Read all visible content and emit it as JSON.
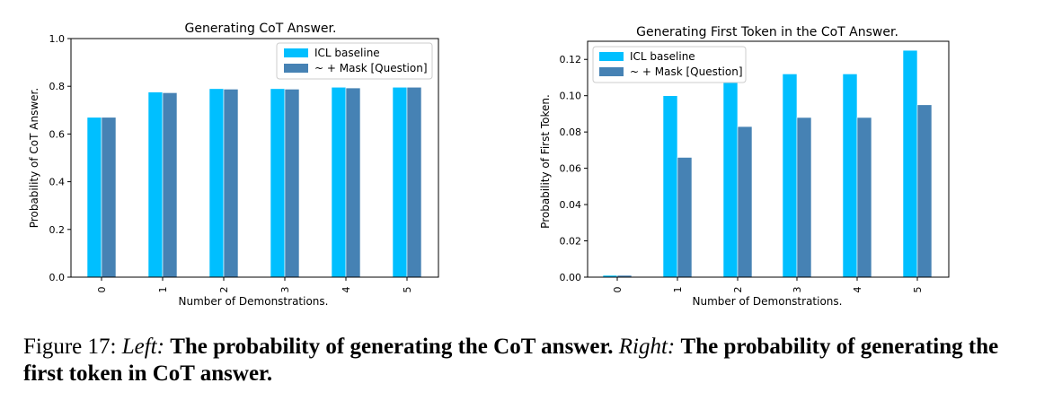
{
  "chart_data": [
    {
      "type": "bar",
      "title": "Generating CoT Answer.",
      "xlabel": "Number of Demonstrations.",
      "ylabel": "Probability of CoT Answer.",
      "categories": [
        "0",
        "1",
        "2",
        "3",
        "4",
        "5"
      ],
      "ylim": [
        0.0,
        1.0
      ],
      "yticks": [
        0.0,
        0.2,
        0.4,
        0.6,
        0.8,
        1.0
      ],
      "ytick_labels": [
        "0.0",
        "0.2",
        "0.4",
        "0.6",
        "0.8",
        "1.0"
      ],
      "legend_position": "top-right",
      "grid": false,
      "series": [
        {
          "name": "ICL baseline",
          "color": "#00BFFF",
          "values": [
            0.67,
            0.776,
            0.79,
            0.79,
            0.796,
            0.796
          ]
        },
        {
          "name": "~ + Mask [Question]",
          "color": "#4682B4",
          "values": [
            0.67,
            0.773,
            0.788,
            0.788,
            0.793,
            0.796
          ]
        }
      ]
    },
    {
      "type": "bar",
      "title": "Generating First Token in the CoT Answer.",
      "xlabel": "Number of Demonstrations.",
      "ylabel": "Probability of First Token.",
      "categories": [
        "0",
        "1",
        "2",
        "3",
        "4",
        "5"
      ],
      "ylim": [
        0.0,
        0.13
      ],
      "yticks": [
        0.0,
        0.02,
        0.04,
        0.06,
        0.08,
        0.1,
        0.12
      ],
      "ytick_labels": [
        "0.00",
        "0.02",
        "0.04",
        "0.06",
        "0.08",
        "0.10",
        "0.12"
      ],
      "legend_position": "top-left",
      "grid": false,
      "series": [
        {
          "name": "ICL baseline",
          "color": "#00BFFF",
          "values": [
            0.001,
            0.1,
            0.11,
            0.112,
            0.112,
            0.125
          ]
        },
        {
          "name": "~ + Mask [Question]",
          "color": "#4682B4",
          "values": [
            0.001,
            0.066,
            0.083,
            0.088,
            0.088,
            0.095
          ]
        }
      ]
    }
  ],
  "caption": {
    "prefix": "Figure 17: ",
    "left_label": "Left:",
    "left_text": "The probability of generating the CoT answer.",
    "right_label": "Right:",
    "right_text": "The probability of generating the first token in CoT answer."
  }
}
